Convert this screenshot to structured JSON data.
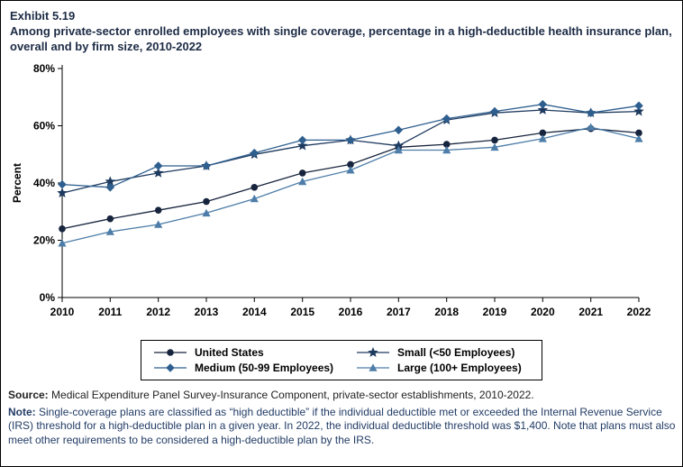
{
  "page": {
    "exhibit_label": "Exhibit 5.19",
    "title": "Among private-sector enrolled employees with single coverage, percentage in a high-deductible health insurance plan, overall and by firm size, 2010-2022",
    "source_label": "Source:",
    "source_text": " Medical Expenditure Panel Survey-Insurance Component, private-sector establishments, 2010-2022.",
    "note_label": "Note:",
    "note_text": " Single-coverage plans are classified as “high deductible” if the individual deductible met or exceeded the Internal Revenue Service (IRS) threshold for a high-deductible plan in a given year. In 2022, the individual deductible threshold was $1,400. Note that plans must also meet other requirements to be considered a high-deductible plan by the IRS."
  },
  "chart_data": {
    "type": "line",
    "title": "Among private-sector enrolled employees with single coverage, percentage in a high-deductible health insurance plan, overall and by firm size, 2010-2022",
    "xlabel": "",
    "ylabel": "Percent",
    "ylim": [
      0,
      80
    ],
    "yticks": [
      0,
      20,
      40,
      60,
      80
    ],
    "ytick_labels": [
      "0%",
      "20%",
      "40%",
      "60%",
      "80%"
    ],
    "categories": [
      2010,
      2011,
      2012,
      2013,
      2014,
      2015,
      2016,
      2017,
      2018,
      2019,
      2020,
      2021,
      2022
    ],
    "grid": false,
    "legend_position": "bottom",
    "series": [
      {
        "name": "United States",
        "marker": "circle",
        "color": "#17243d",
        "values": [
          24,
          27.5,
          30.5,
          33.5,
          38.5,
          43.5,
          46.5,
          52.5,
          53.5,
          55,
          57.5,
          59,
          57.5
        ]
      },
      {
        "name": "Small (<50 Employees)",
        "marker": "star",
        "color": "#1e3a5f",
        "values": [
          36.5,
          40.5,
          43.5,
          46,
          50,
          53,
          55,
          53,
          62,
          64.5,
          65.5,
          64.5,
          65
        ]
      },
      {
        "name": "Medium (50-99 Employees)",
        "marker": "diamond",
        "color": "#2e5f8f",
        "values": [
          39.5,
          38.5,
          46,
          46,
          50.5,
          55,
          55,
          58.5,
          62.5,
          65,
          67.5,
          64.5,
          67
        ]
      },
      {
        "name": "Large (100+ Employees)",
        "marker": "triangle",
        "color": "#4d7da8",
        "values": [
          19,
          23,
          25.5,
          29.5,
          34.5,
          40.5,
          44.5,
          51.5,
          51.5,
          52.5,
          55.5,
          59.5,
          55.5
        ]
      }
    ]
  }
}
